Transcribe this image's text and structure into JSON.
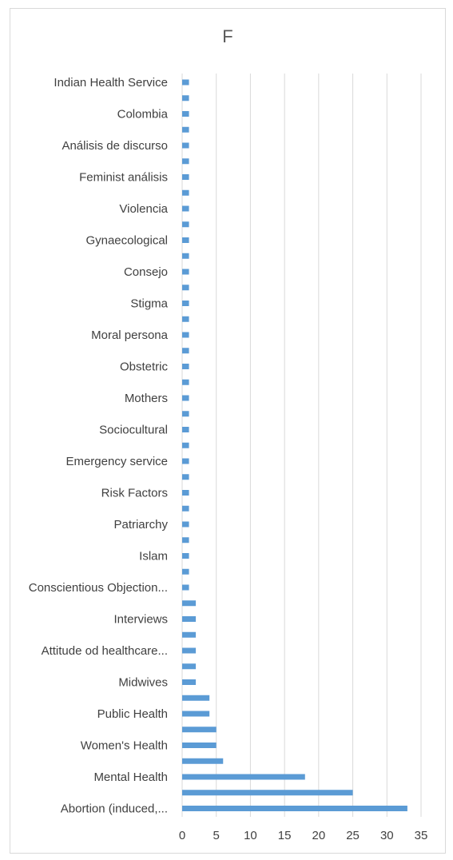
{
  "chart_data": {
    "type": "bar",
    "orientation": "horizontal",
    "title": "F",
    "xlabel": "",
    "ylabel": "",
    "xlim": [
      0,
      35
    ],
    "xticks": [
      0,
      5,
      10,
      15,
      20,
      25,
      30,
      35
    ],
    "grid": "vertical",
    "legend": "none",
    "bar_color": "#5b9bd5",
    "grid_color": "#d9d9d9",
    "categories": [
      "Abortion (induced,...",
      "",
      "Mental Health",
      "",
      "Women's Health",
      "",
      "Public Health",
      "",
      "Midwives",
      "",
      "Attitude od healthcare...",
      "",
      "Interviews",
      "",
      "Conscientious Objection...",
      "",
      "Islam",
      "",
      "Patriarchy",
      "",
      "Risk Factors",
      "",
      "Emergency service",
      "",
      "Sociocultural",
      "",
      "Mothers",
      "",
      "Obstetric",
      "",
      "Moral persona",
      "",
      "Stigma",
      "",
      "Consejo",
      "",
      "Gynaecological",
      "",
      "Violencia",
      "",
      "Feminist análisis",
      "",
      "Análisis de discurso",
      "",
      "Colombia",
      "",
      "Indian Health Service"
    ],
    "values": [
      33,
      25,
      18,
      6,
      5,
      5,
      4,
      4,
      2,
      2,
      2,
      2,
      2,
      2,
      1,
      1,
      1,
      1,
      1,
      1,
      1,
      1,
      1,
      1,
      1,
      1,
      1,
      1,
      1,
      1,
      1,
      1,
      1,
      1,
      1,
      1,
      1,
      1,
      1,
      1,
      1,
      1,
      1,
      1,
      1,
      1,
      1
    ]
  }
}
